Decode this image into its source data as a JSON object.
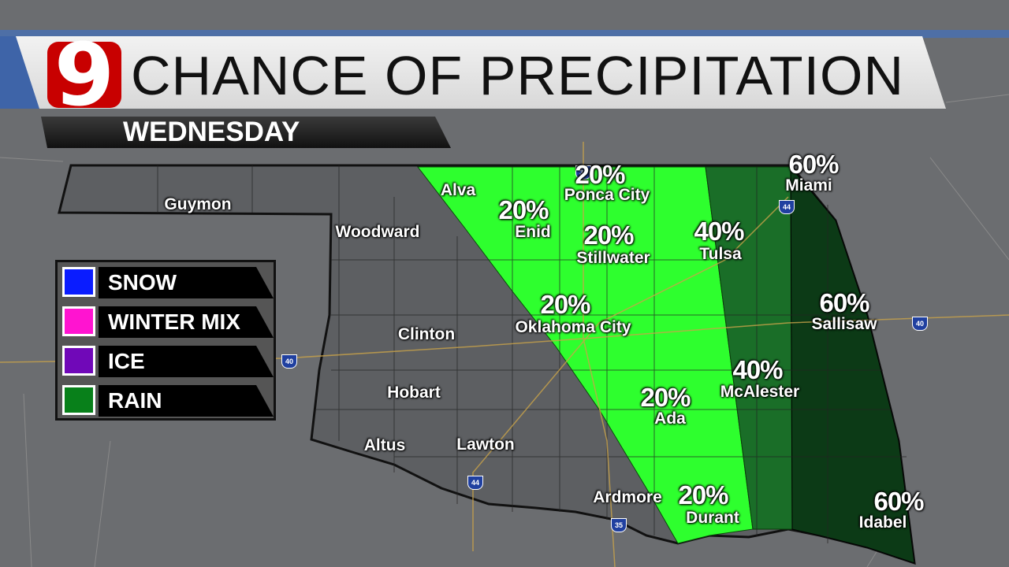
{
  "header": {
    "logo": "9",
    "title": "CHANCE OF PRECIPITATION",
    "subtitle": "WEDNESDAY"
  },
  "legend": [
    {
      "label": "SNOW",
      "color": "#0a1cff"
    },
    {
      "label": "WINTER MIX",
      "color": "#ff14d0"
    },
    {
      "label": "ICE",
      "color": "#7008b8"
    },
    {
      "label": "RAIN",
      "color": "#08801a"
    }
  ],
  "zone_colors": {
    "20%": "#2eff2e",
    "40%": "#1a6e28",
    "60%": "#0c3a16"
  },
  "cities": [
    "Guymon",
    "Woodward",
    "Alva",
    "Enid",
    "Ponca City",
    "Stillwater",
    "Tulsa",
    "Miami",
    "Clinton",
    "Oklahoma City",
    "Sallisaw",
    "Hobart",
    "Altus",
    "Lawton",
    "Ada",
    "McAlester",
    "Ardmore",
    "Durant",
    "Idabel"
  ],
  "percents": {
    "ponca": "20%",
    "enid": "20%",
    "stillwater": "20%",
    "tulsa": "40%",
    "miami": "60%",
    "okc": "20%",
    "sallisaw": "60%",
    "mcalester": "40%",
    "ada": "20%",
    "durant": "20%",
    "idabel": "60%"
  },
  "interstates": [
    "35",
    "44",
    "40",
    "40",
    "44",
    "35"
  ]
}
